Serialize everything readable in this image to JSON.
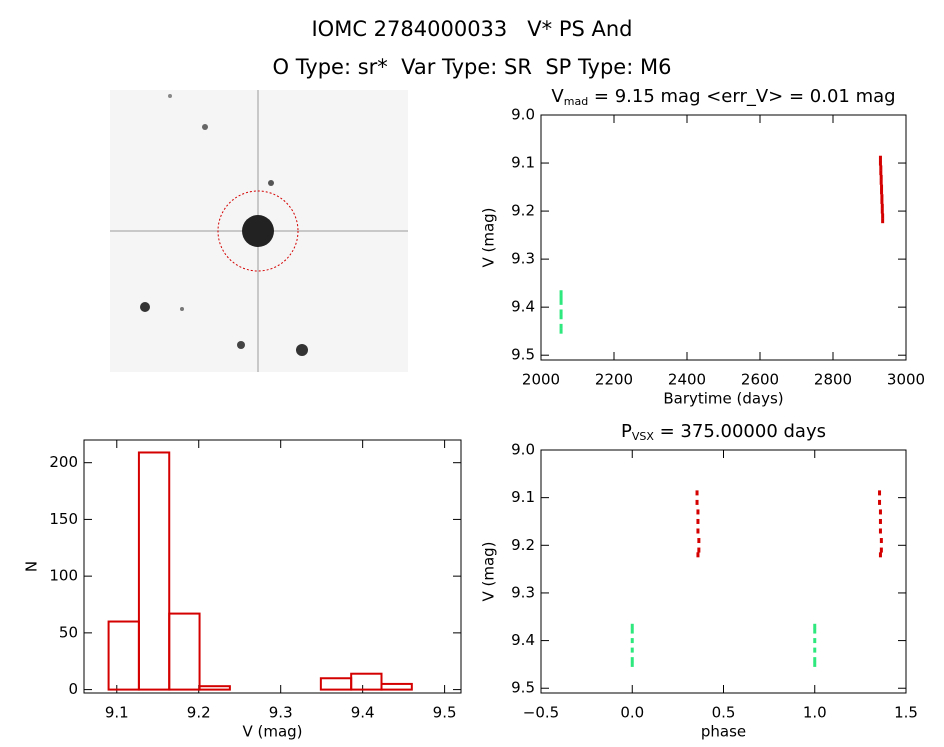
{
  "header": {
    "title": "IOMC 2784000033   V* PS And",
    "subtitle": "O Type: sr*  Var Type: SR  SP Type: M6"
  },
  "chart_data": [
    {
      "type": "scatter",
      "title": {
        "main": "V",
        "sub": "mad",
        "rest": " = 9.15 mag <err_V> = 0.01 mag"
      },
      "xlabel": "Barytime (days)",
      "ylabel": "V (mag)",
      "xlim": [
        2000,
        3000
      ],
      "xticks": [
        2000,
        2200,
        2400,
        2600,
        2800,
        3000
      ],
      "ylim": [
        9.51,
        9.0
      ],
      "yticks": [
        {
          "value": 9.0,
          "label": "9.0"
        },
        9.1,
        9.2,
        9.3,
        9.4,
        9.5
      ],
      "series": [
        {
          "color": "#d40000",
          "x": [
            2930,
            2930,
            2931,
            2931,
            2932,
            2932,
            2933,
            2933,
            2934,
            2934,
            2935,
            2935,
            2936,
            2936
          ],
          "values": [
            9.09,
            9.1,
            9.11,
            9.12,
            9.13,
            9.14,
            9.15,
            9.16,
            9.17,
            9.18,
            9.19,
            9.2,
            9.21,
            9.22
          ]
        },
        {
          "color": "#2ee87e",
          "x": [
            2055,
            2055,
            2055,
            2055,
            2055,
            2055,
            2055
          ],
          "values": [
            9.37,
            9.38,
            9.39,
            9.41,
            9.42,
            9.44,
            9.45
          ]
        }
      ]
    },
    {
      "type": "histogram",
      "xlabel": "V (mag)",
      "ylabel": "N",
      "xlim": [
        9.06,
        9.52
      ],
      "xticks": [
        9.1,
        9.2,
        9.3,
        9.4,
        9.5
      ],
      "ylim": [
        -3,
        220
      ],
      "yticks": [
        0,
        50,
        100,
        150,
        200
      ],
      "color": "#d40000",
      "bins": [
        9.09,
        9.127,
        9.164,
        9.201,
        9.238,
        9.275,
        9.312,
        9.349,
        9.386,
        9.423,
        9.46
      ],
      "values": [
        60,
        209,
        67,
        3,
        0,
        0,
        0,
        10,
        14,
        5
      ]
    },
    {
      "type": "scatter",
      "title": {
        "main": "P",
        "sub": "VSX",
        "rest": " = 375.00000 days"
      },
      "xlabel": "phase",
      "ylabel": "V (mag)",
      "xlim": [
        -0.5,
        1.5
      ],
      "xticks": [
        {
          "value": -0.5,
          "label": "−0.5"
        },
        {
          "value": 0.0,
          "label": "0.0"
        },
        0.5,
        {
          "value": 1.0,
          "label": "1.0"
        },
        1.5
      ],
      "ylim": [
        9.51,
        9.0
      ],
      "yticks": [
        {
          "value": 9.0,
          "label": "9.0"
        },
        9.1,
        9.2,
        9.3,
        9.4,
        9.5
      ],
      "series": [
        {
          "color": "#d40000",
          "x": [
            0.355,
            0.355,
            0.36,
            0.36,
            0.36,
            0.365,
            0.365,
            0.36,
            1.355,
            1.355,
            1.36,
            1.36,
            1.36,
            1.365,
            1.365,
            1.36
          ],
          "values": [
            9.09,
            9.11,
            9.13,
            9.15,
            9.17,
            9.19,
            9.21,
            9.22,
            9.09,
            9.11,
            9.13,
            9.15,
            9.17,
            9.19,
            9.21,
            9.22
          ]
        },
        {
          "color": "#2ee87e",
          "x": [
            0,
            0,
            0,
            0,
            0,
            0,
            1,
            1,
            1,
            1,
            1,
            1
          ],
          "values": [
            9.37,
            9.38,
            9.4,
            9.42,
            9.44,
            9.45,
            9.37,
            9.38,
            9.4,
            9.42,
            9.44,
            9.45
          ]
        }
      ]
    }
  ]
}
